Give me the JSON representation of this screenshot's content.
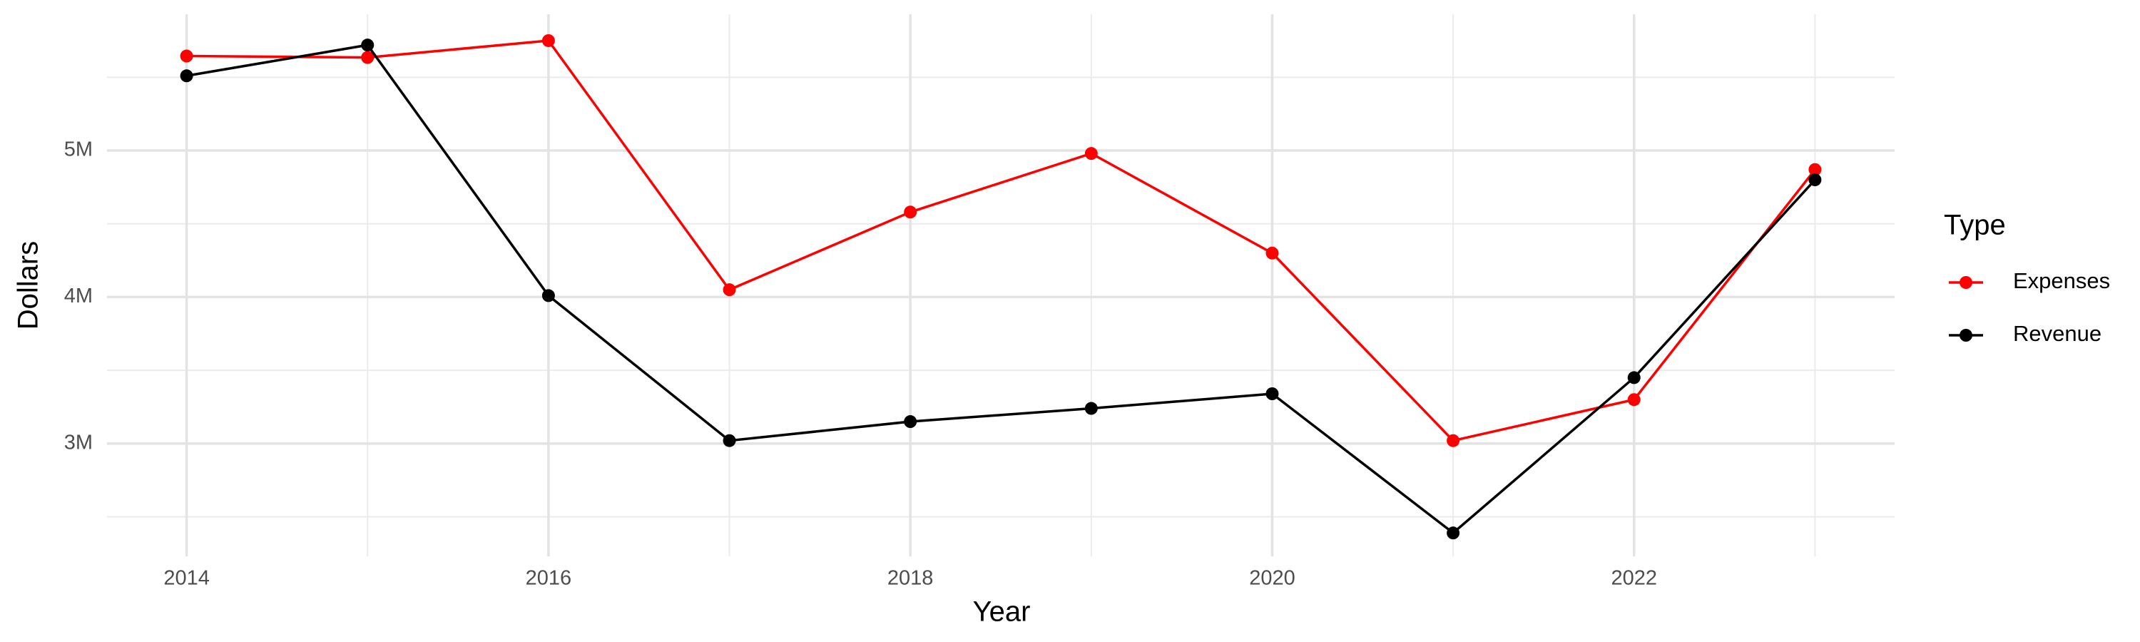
{
  "chart_data": {
    "type": "line",
    "x_label": "Year",
    "y_label": "Dollars",
    "legend_title": "Type",
    "x": [
      2014,
      2015,
      2016,
      2017,
      2018,
      2019,
      2020,
      2021,
      2022,
      2023
    ],
    "series": [
      {
        "name": "Expenses",
        "color": "#ff0000",
        "values": [
          5645000,
          5635000,
          5750000,
          4050000,
          4580000,
          4980000,
          4300000,
          3020000,
          3300000,
          4870000
        ]
      },
      {
        "name": "Revenue",
        "color": "#000000",
        "values": [
          5510000,
          5720000,
          4010000,
          3020000,
          3150000,
          3240000,
          3340000,
          2390000,
          3450000,
          4800000
        ]
      }
    ],
    "xlim": [
      2013.56,
      2023.44
    ],
    "xticks": [
      2014,
      2016,
      2018,
      2020,
      2022
    ],
    "x_minor_ticks": [
      2015,
      2017,
      2019,
      2021,
      2023
    ],
    "ylim": [
      2230000,
      5930000
    ],
    "yticks": [
      {
        "value": 3000000,
        "label": "3M"
      },
      {
        "value": 4000000,
        "label": "4M"
      },
      {
        "value": 5000000,
        "label": "5M"
      }
    ],
    "y_minor_ticks": [
      2500000,
      3500000,
      4500000,
      5500000
    ],
    "grid": true,
    "legend": "right"
  }
}
